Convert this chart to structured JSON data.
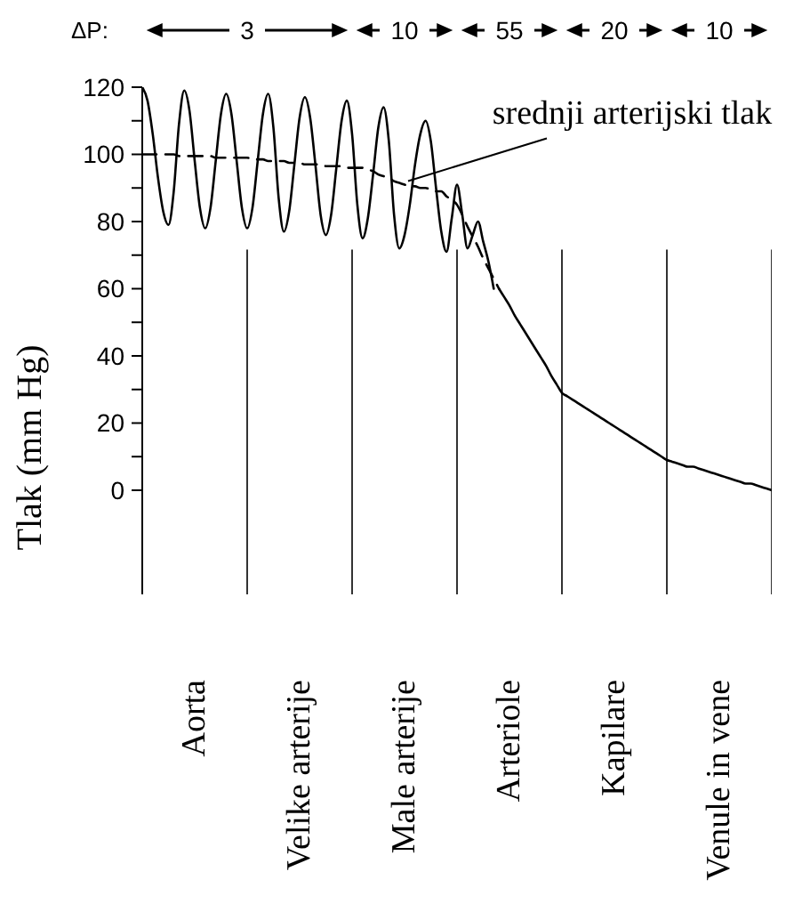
{
  "chart_data": {
    "type": "line",
    "ylabel": "Tlak (mm Hg)",
    "categories": [
      null,
      null,
      null,
      null,
      null,
      null,
      null,
      null,
      null,
      null,
      "Aorta",
      null,
      null,
      null,
      null,
      null,
      null,
      null,
      null,
      null,
      null,
      null,
      null,
      null,
      null,
      null,
      null,
      null,
      null,
      null,
      "Velike arterije",
      null,
      null,
      null,
      null,
      null,
      null,
      null,
      null,
      null,
      null,
      null,
      null,
      null,
      null,
      null,
      null,
      null,
      null,
      null,
      "Male arterije",
      null,
      null,
      null,
      null,
      null,
      null,
      null,
      null,
      null,
      null,
      null,
      null,
      null,
      null,
      null,
      null,
      null,
      null,
      null,
      "Arteriole",
      null,
      null,
      null,
      null,
      null,
      null,
      null,
      null,
      null,
      null,
      null,
      null,
      null,
      null,
      null,
      null,
      null,
      null,
      null,
      "Kapilare",
      null,
      null,
      null,
      null,
      null,
      null,
      null,
      null,
      null,
      null,
      null,
      null,
      null,
      null,
      null,
      null,
      null,
      null,
      null,
      "Venule in vene",
      null,
      null,
      null,
      null,
      null,
      null,
      null,
      null,
      null,
      null
    ],
    "ylim": [
      -31,
      120
    ],
    "yticks": [
      0,
      {
        "value": 10,
        "label": null
      },
      20,
      {
        "value": 30,
        "label": null
      },
      40,
      {
        "value": 50,
        "label": null
      },
      60,
      {
        "value": 70,
        "label": null
      },
      80,
      {
        "value": 90,
        "label": null
      },
      100,
      {
        "value": 110,
        "label": null
      },
      120
    ],
    "grid": false,
    "legend": false,
    "series": [
      {
        "color": "#000000",
        "line_style": "solid",
        "values": [
          120,
          116,
          106,
          93,
          83,
          79,
          89,
          109,
          119,
          113,
          98,
          84,
          78,
          84,
          98,
          112,
          118,
          112,
          98,
          84,
          78,
          84,
          98,
          112,
          118,
          108,
          87,
          77,
          83,
          97,
          111,
          117,
          111,
          97,
          82,
          76,
          82,
          96,
          110,
          116,
          106,
          85,
          75,
          81,
          94,
          108,
          114,
          104,
          82,
          72,
          76,
          85,
          97,
          106,
          110,
          104,
          90,
          77,
          71,
          81,
          91,
          82,
          72,
          76,
          80,
          74,
          68,
          60,
          null,
          null,
          null,
          null,
          null,
          null,
          null,
          null,
          null,
          null,
          null,
          null,
          null,
          null,
          null,
          null,
          null,
          null,
          null,
          null,
          null,
          null,
          null,
          null,
          null,
          null,
          null,
          null,
          null,
          null,
          null,
          null,
          null,
          null,
          null,
          null,
          null,
          null,
          null,
          null,
          null,
          null,
          null,
          null,
          null,
          null,
          null,
          null,
          null,
          null,
          null,
          null,
          null
        ]
      },
      {
        "color": "#000000",
        "line_style": "dashed",
        "values": [
          100,
          100,
          100,
          100,
          100,
          100,
          100,
          99.5,
          99.5,
          99.5,
          99.5,
          99.5,
          99.5,
          99.5,
          99,
          99,
          99,
          99,
          99,
          99,
          99,
          98.5,
          98.5,
          98.5,
          98,
          98,
          98,
          98,
          97.5,
          97.5,
          97.5,
          97,
          97,
          97,
          97,
          96.5,
          96.5,
          96.5,
          96.5,
          96,
          96,
          96,
          96,
          95.5,
          95,
          94,
          93.5,
          93,
          92,
          91.5,
          91,
          90.5,
          90.5,
          90,
          90,
          89.5,
          89,
          89,
          87.5,
          86.5,
          85,
          82,
          78.5,
          75.5,
          72.5,
          69,
          66,
          63,
          60,
          null,
          null,
          null,
          null,
          null,
          null,
          null,
          null,
          null,
          null,
          null,
          null,
          null,
          null,
          null,
          null,
          null,
          null,
          null,
          null,
          null,
          null,
          null,
          null,
          null,
          null,
          null,
          null,
          null,
          null,
          null,
          null,
          null,
          null,
          null,
          null,
          null,
          null,
          null,
          null,
          null,
          null,
          null,
          null,
          null,
          null,
          null,
          null,
          null,
          null,
          null,
          null
        ]
      },
      {
        "color": "#000000",
        "line_style": "solid",
        "values": [
          null,
          null,
          null,
          null,
          null,
          null,
          null,
          null,
          null,
          null,
          null,
          null,
          null,
          null,
          null,
          null,
          null,
          null,
          null,
          null,
          null,
          null,
          null,
          null,
          null,
          null,
          null,
          null,
          null,
          null,
          null,
          null,
          null,
          null,
          null,
          null,
          null,
          null,
          null,
          null,
          null,
          null,
          null,
          null,
          null,
          null,
          null,
          null,
          null,
          null,
          null,
          null,
          null,
          null,
          null,
          null,
          null,
          null,
          null,
          null,
          null,
          null,
          null,
          null,
          null,
          null,
          null,
          null,
          60,
          57.5,
          55,
          52,
          49.5,
          47,
          44.5,
          42,
          39.5,
          37,
          34,
          31.5,
          29,
          28,
          27,
          26,
          25,
          24,
          23,
          22,
          21,
          20,
          19,
          18,
          17,
          16,
          15,
          14,
          13,
          12,
          11,
          10,
          9,
          8.5,
          8,
          7.5,
          7,
          7,
          6.5,
          6,
          5.5,
          5,
          4.5,
          4,
          3.5,
          3,
          2.5,
          2,
          2,
          1.5,
          1,
          0.5,
          0
        ]
      }
    ],
    "annotations": [
      "ΔP:",
      "3",
      "10",
      "55",
      "20",
      "10",
      {
        "text": "srednji arterijski tlak",
        "x": "Male arterije",
        "y": 91
      }
    ]
  }
}
